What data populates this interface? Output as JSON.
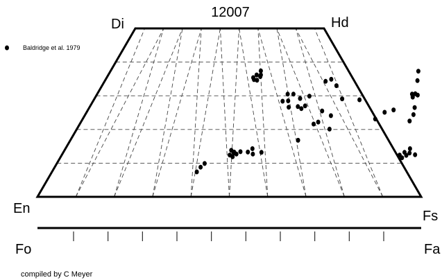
{
  "chart_data": {
    "type": "scatter",
    "title": "12007",
    "plot": "pyroxene quadrilateral (En-Fs-Di-Hd)",
    "corners": {
      "top_left": "Di",
      "top_right": "Hd",
      "bottom_left": "En",
      "bottom_right": "Fs"
    },
    "olivine_axis": {
      "left": "Fo",
      "right": "Fa",
      "ticks": 10
    },
    "grid": true,
    "legend_position": "top-left",
    "series": [
      {
        "name": "Baldridge et al. 1979",
        "marker": "filled-circle",
        "color": "#000000",
        "points": [
          {
            "fs": 39.1,
            "wo": 36.2
          },
          {
            "fs": 40.2,
            "wo": 36.2
          },
          {
            "fs": 39.1,
            "wo": 34.8
          },
          {
            "fs": 40.0,
            "wo": 34.6
          },
          {
            "fs": 40.3,
            "wo": 35.7
          },
          {
            "fs": 39.6,
            "wo": 37.4
          },
          {
            "fs": 38.6,
            "wo": 35.4
          },
          {
            "fs": 50.1,
            "wo": 30.5
          },
          {
            "fs": 51.6,
            "wo": 30.5
          },
          {
            "fs": 49.8,
            "wo": 28.4
          },
          {
            "fs": 51.2,
            "wo": 28.5
          },
          {
            "fs": 52.3,
            "wo": 26.6
          },
          {
            "fs": 54.6,
            "wo": 26.8
          },
          {
            "fs": 54.0,
            "wo": 29.2
          },
          {
            "fs": 56.1,
            "wo": 29.9
          },
          {
            "fs": 56.4,
            "wo": 27.0
          },
          {
            "fs": 55.8,
            "wo": 26.2
          },
          {
            "fs": 58.2,
            "wo": 34.3
          },
          {
            "fs": 59.4,
            "wo": 34.9
          },
          {
            "fs": 61.7,
            "wo": 33.0
          },
          {
            "fs": 61.6,
            "wo": 25.5
          },
          {
            "fs": 61.3,
            "wo": 21.6
          },
          {
            "fs": 65.1,
            "wo": 29.1
          },
          {
            "fs": 62.2,
            "wo": 22.2
          },
          {
            "fs": 69.8,
            "wo": 28.8
          },
          {
            "fs": 64.6,
            "wo": 24.1
          },
          {
            "fs": 66.2,
            "wo": 20.1
          },
          {
            "fs": 81.2,
            "wo": 37.3
          },
          {
            "fs": 82.3,
            "wo": 34.5
          },
          {
            "fs": 82.8,
            "wo": 30.5
          },
          {
            "fs": 83.4,
            "wo": 29.6
          },
          {
            "fs": 83.6,
            "wo": 30.6
          },
          {
            "fs": 84.4,
            "wo": 30.2
          },
          {
            "fs": 80.2,
            "wo": 25.8
          },
          {
            "fs": 78.2,
            "wo": 25.1
          },
          {
            "fs": 76.7,
            "wo": 23.1
          },
          {
            "fs": 85.4,
            "wo": 26.5
          },
          {
            "fs": 86.1,
            "wo": 24.4
          },
          {
            "fs": 86.0,
            "wo": 22.5
          },
          {
            "fs": 43.6,
            "wo": 13.8
          },
          {
            "fs": 43.9,
            "wo": 12.4
          },
          {
            "fs": 44.6,
            "wo": 13.3
          },
          {
            "fs": 44.9,
            "wo": 11.9
          },
          {
            "fs": 44.7,
            "wo": 13.0
          },
          {
            "fs": 46.2,
            "wo": 13.4
          },
          {
            "fs": 45.5,
            "wo": 12.7
          },
          {
            "fs": 48.2,
            "wo": 13.3
          },
          {
            "fs": 48.9,
            "wo": 14.3
          },
          {
            "fs": 49.8,
            "wo": 12.7
          },
          {
            "fs": 51.8,
            "wo": 13.2
          },
          {
            "fs": 38.1,
            "wo": 8.8
          },
          {
            "fs": 37.8,
            "wo": 7.4
          },
          {
            "fs": 38.6,
            "wo": 9.9
          },
          {
            "fs": 59.6,
            "wo": 16.8
          },
          {
            "fs": 88.3,
            "wo": 12.4
          },
          {
            "fs": 89.3,
            "wo": 11.6
          },
          {
            "fs": 90.1,
            "wo": 12.3
          },
          {
            "fs": 89.2,
            "wo": 13.2
          },
          {
            "fs": 90.1,
            "wo": 14.3
          },
          {
            "fs": 92.3,
            "wo": 12.5
          },
          {
            "fs": 90.6,
            "wo": 13.0
          }
        ]
      }
    ]
  },
  "credit": "compiled by C Meyer"
}
